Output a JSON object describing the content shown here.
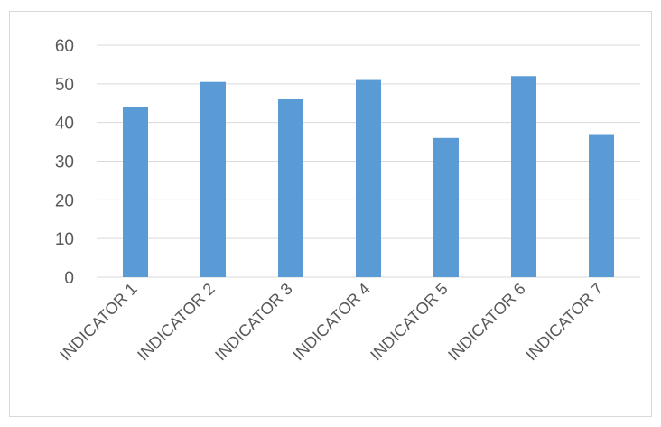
{
  "chart_data": {
    "type": "bar",
    "title": "",
    "xlabel": "",
    "ylabel": "",
    "categories": [
      "INDICATOR 1",
      "INDICATOR 2",
      "INDICATOR 3",
      "INDICATOR 4",
      "INDICATOR 5",
      "INDICATOR 6",
      "INDICATOR 7"
    ],
    "values": [
      44,
      50.5,
      46,
      51,
      36,
      52,
      37
    ],
    "ylim": [
      0,
      60
    ],
    "yticks": [
      0,
      10,
      20,
      30,
      40,
      50,
      60
    ],
    "ytick_labels": [
      "0",
      "10",
      "20",
      "30",
      "40",
      "50",
      "60"
    ],
    "grid": true,
    "legend": "none",
    "bar_color": "#5b9bd5",
    "grid_color": "#d9d9d9",
    "text_color": "#595959"
  }
}
